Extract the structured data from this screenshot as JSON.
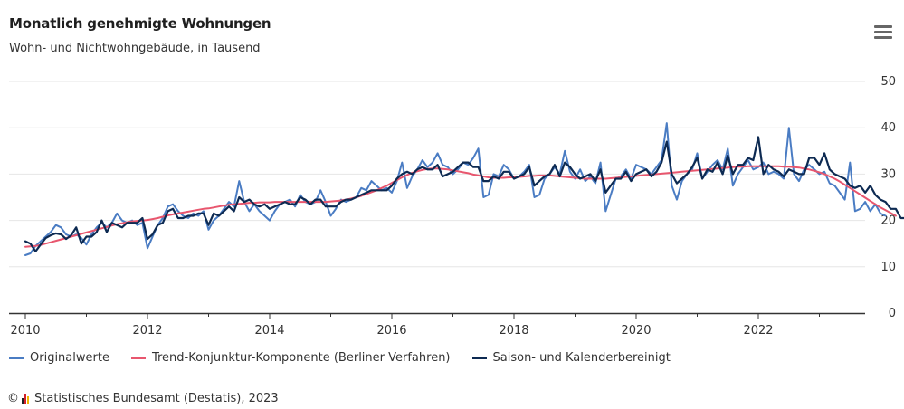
{
  "title": "Monatlich genehmigte Wohnungen",
  "subtitle": "Wohn- und Nichtwohngebäude, in Tausend",
  "menu_icon": "hamburger-menu-icon",
  "credit": {
    "copyright": "©",
    "text": "Statistisches Bundesamt (Destatis), 2023"
  },
  "colors": {
    "original": "#4a7cc3",
    "trend": "#e8566e",
    "adjusted": "#0d2a52",
    "grid": "#e6e6e6",
    "axis": "#333333"
  },
  "chart_data": {
    "type": "line",
    "title": "Monatlich genehmigte Wohnungen",
    "subtitle": "Wohn- und Nichtwohngebäude, in Tausend",
    "x_start": "2010-01",
    "x_end": "2023-06",
    "x_ticks": [
      "2010",
      "2012",
      "2014",
      "2016",
      "2018",
      "2020",
      "2022"
    ],
    "y_ticks": [
      "0",
      "10",
      "20",
      "30",
      "40",
      "50"
    ],
    "ylim": [
      0,
      50
    ],
    "y_axis_side": "right",
    "grid": true,
    "legend_position": "bottom-left",
    "series": [
      {
        "name": "Originalwerte",
        "values": [
          12.5,
          12.9,
          14.5,
          15.5,
          16.5,
          17.5,
          19.0,
          18.5,
          17.0,
          16.5,
          17.0,
          16.2,
          14.8,
          17.0,
          18.5,
          19.5,
          18.5,
          19.5,
          21.5,
          20.0,
          19.5,
          20.0,
          19.0,
          19.5,
          14.0,
          16.5,
          19.0,
          20.5,
          23.0,
          23.5,
          22.0,
          21.0,
          20.5,
          21.5,
          21.0,
          22.0,
          18.0,
          20.0,
          21.0,
          22.5,
          24.0,
          23.0,
          28.5,
          24.0,
          22.0,
          23.5,
          22.0,
          21.0,
          20.0,
          22.0,
          23.5,
          24.0,
          24.5,
          23.0,
          25.5,
          24.0,
          23.5,
          24.0,
          26.5,
          24.0,
          21.0,
          22.5,
          24.5,
          24.0,
          24.5,
          25.0,
          27.0,
          26.5,
          28.5,
          27.5,
          26.5,
          27.0,
          26.0,
          28.5,
          32.5,
          27.0,
          29.5,
          31.0,
          33.0,
          31.5,
          32.5,
          34.5,
          32.0,
          31.5,
          30.0,
          31.0,
          32.5,
          32.0,
          33.5,
          35.5,
          25.0,
          25.5,
          30.0,
          29.5,
          32.0,
          31.0,
          29.0,
          29.5,
          30.5,
          32.0,
          25.0,
          25.5,
          29.0,
          30.0,
          31.5,
          30.0,
          35.0,
          30.5,
          29.0,
          31.0,
          28.5,
          29.5,
          28.0,
          32.5,
          22.0,
          25.5,
          29.0,
          29.5,
          31.0,
          29.0,
          32.0,
          31.5,
          31.0,
          30.0,
          31.5,
          33.0,
          41.0,
          27.5,
          24.5,
          28.5,
          30.0,
          31.0,
          34.5,
          29.0,
          30.5,
          32.0,
          33.0,
          31.0,
          35.5,
          27.5,
          30.0,
          31.5,
          33.0,
          31.0,
          31.5,
          32.5,
          30.0,
          30.5,
          30.0,
          29.0,
          40.0,
          30.0,
          28.5,
          31.0,
          32.0,
          31.0,
          30.0,
          30.5,
          28.0,
          27.5,
          26.0,
          24.5,
          32.5,
          22.0,
          22.5,
          24.0,
          22.0,
          23.5,
          21.5,
          21.0
        ]
      },
      {
        "name": "Trend-Konjunktur-Komponente (Berliner Verfahren)",
        "values": [
          14.3,
          14.4,
          14.5,
          14.7,
          15.0,
          15.3,
          15.6,
          15.9,
          16.2,
          16.5,
          16.8,
          17.1,
          17.4,
          17.7,
          18.0,
          18.3,
          18.6,
          18.9,
          19.2,
          19.4,
          19.6,
          19.8,
          19.9,
          20.0,
          20.1,
          20.3,
          20.5,
          20.8,
          21.1,
          21.3,
          21.5,
          21.7,
          21.9,
          22.1,
          22.3,
          22.5,
          22.6,
          22.8,
          23.0,
          23.2,
          23.4,
          23.5,
          23.6,
          23.7,
          23.8,
          23.8,
          23.9,
          23.9,
          23.9,
          24.0,
          24.0,
          24.0,
          24.0,
          24.0,
          24.0,
          24.0,
          24.0,
          24.0,
          24.0,
          24.0,
          24.1,
          24.2,
          24.3,
          24.5,
          24.7,
          25.0,
          25.3,
          25.7,
          26.1,
          26.5,
          27.0,
          27.5,
          28.1,
          28.7,
          29.3,
          29.8,
          30.3,
          30.6,
          30.9,
          31.1,
          31.2,
          31.2,
          31.1,
          31.0,
          30.8,
          30.6,
          30.4,
          30.2,
          29.9,
          29.7,
          29.5,
          29.3,
          29.2,
          29.2,
          29.2,
          29.3,
          29.3,
          29.4,
          29.5,
          29.6,
          29.6,
          29.7,
          29.7,
          29.7,
          29.6,
          29.5,
          29.4,
          29.3,
          29.2,
          29.1,
          29.0,
          29.0,
          29.0,
          29.0,
          29.0,
          29.1,
          29.2,
          29.3,
          29.4,
          29.5,
          29.6,
          29.7,
          29.8,
          29.9,
          30.0,
          30.1,
          30.2,
          30.3,
          30.4,
          30.5,
          30.6,
          30.7,
          30.8,
          30.9,
          31.0,
          31.1,
          31.2,
          31.3,
          31.4,
          31.5,
          31.6,
          31.6,
          31.7,
          31.7,
          31.7,
          31.7,
          31.7,
          31.7,
          31.7,
          31.6,
          31.6,
          31.5,
          31.4,
          31.2,
          31.0,
          30.7,
          30.4,
          30.0,
          29.5,
          29.0,
          28.4,
          27.7,
          27.0,
          26.3,
          25.6,
          24.9,
          24.2,
          23.5,
          22.8,
          22.2,
          21.6,
          21.0
        ]
      },
      {
        "name": "Saison- und Kalenderbereinigt",
        "values": [
          15.5,
          15.0,
          13.3,
          14.8,
          16.2,
          16.8,
          17.2,
          17.0,
          16.0,
          16.8,
          18.5,
          15.0,
          16.5,
          16.5,
          17.5,
          20.0,
          17.5,
          19.5,
          19.0,
          18.5,
          19.5,
          19.5,
          19.5,
          20.5,
          16.0,
          17.0,
          19.0,
          19.5,
          22.0,
          22.5,
          20.5,
          20.5,
          21.0,
          21.0,
          21.5,
          21.5,
          19.0,
          21.5,
          21.0,
          22.0,
          23.0,
          22.0,
          25.0,
          24.0,
          24.5,
          23.5,
          23.0,
          23.5,
          22.5,
          23.0,
          23.5,
          24.0,
          23.5,
          23.5,
          25.0,
          24.5,
          23.5,
          24.5,
          24.5,
          23.0,
          23.0,
          23.0,
          24.0,
          24.5,
          24.5,
          25.0,
          25.5,
          26.0,
          26.5,
          26.5,
          26.5,
          26.5,
          27.5,
          29.0,
          30.0,
          30.5,
          30.0,
          31.0,
          31.5,
          31.0,
          31.0,
          32.0,
          29.5,
          30.0,
          30.5,
          31.5,
          32.5,
          32.5,
          31.5,
          31.5,
          28.5,
          28.5,
          29.5,
          29.0,
          30.5,
          30.5,
          29.0,
          29.5,
          30.0,
          31.5,
          27.5,
          28.5,
          29.5,
          30.0,
          32.0,
          29.5,
          32.5,
          31.5,
          30.0,
          29.0,
          29.5,
          30.0,
          28.5,
          31.0,
          26.0,
          27.5,
          29.0,
          29.0,
          30.5,
          28.5,
          30.0,
          30.5,
          31.0,
          29.5,
          30.5,
          32.5,
          37.0,
          30.0,
          28.0,
          29.0,
          30.0,
          31.5,
          33.5,
          29.0,
          31.0,
          30.5,
          32.5,
          30.0,
          34.0,
          30.0,
          32.0,
          32.0,
          33.5,
          33.0,
          38.0,
          30.0,
          32.0,
          31.0,
          30.5,
          29.5,
          31.0,
          30.5,
          30.0,
          30.0,
          33.5,
          33.5,
          32.0,
          34.5,
          31.0,
          30.0,
          29.5,
          29.0,
          27.5,
          27.0,
          27.5,
          26.0,
          27.5,
          25.5,
          24.5,
          24.0,
          22.5,
          22.5,
          20.5,
          20.5
        ]
      }
    ]
  }
}
